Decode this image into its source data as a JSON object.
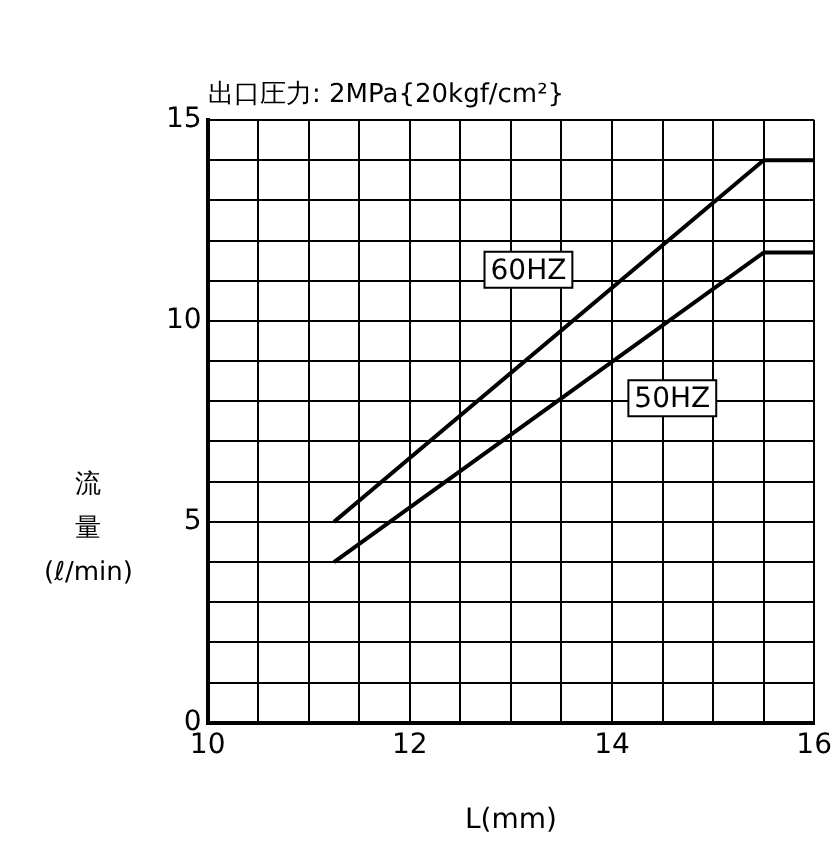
{
  "chart_data": {
    "type": "line",
    "subtitle": "出口圧力: 2MPa{20kgf/cm²}",
    "xlabel": "L(mm)",
    "ylabel": "流量(ℓ/min)",
    "xlim": [
      10,
      16
    ],
    "xticks": [
      10,
      {
        "value": 10.5,
        "label": null
      },
      {
        "value": 11,
        "label": null
      },
      {
        "value": 11.5,
        "label": null
      },
      12,
      {
        "value": 12.5,
        "label": null
      },
      {
        "value": 13,
        "label": null
      },
      {
        "value": 13.5,
        "label": null
      },
      14,
      {
        "value": 14.5,
        "label": null
      },
      {
        "value": 15,
        "label": null
      },
      {
        "value": 15.5,
        "label": null
      },
      16
    ],
    "ylim": [
      0,
      15
    ],
    "yticks": [
      0,
      {
        "value": 1,
        "label": null
      },
      {
        "value": 2,
        "label": null
      },
      {
        "value": 3,
        "label": null
      },
      {
        "value": 4,
        "label": null
      },
      5,
      {
        "value": 6,
        "label": null
      },
      {
        "value": 7,
        "label": null
      },
      {
        "value": 8,
        "label": null
      },
      {
        "value": 9,
        "label": null
      },
      10,
      {
        "value": 11,
        "label": null
      },
      {
        "value": 12,
        "label": null
      },
      {
        "value": 13,
        "label": null
      },
      {
        "value": 14,
        "label": null
      },
      15
    ],
    "grid": true,
    "legend": false,
    "marker": "none",
    "line_style": "solid",
    "series": [
      {
        "name": "60HZ",
        "color": "#000000",
        "x": [
          11.25,
          15.5,
          16
        ],
        "values": [
          5,
          14,
          14
        ]
      },
      {
        "name": "50HZ",
        "color": "#000000",
        "x": [
          11.25,
          15.5,
          16
        ],
        "values": [
          4,
          11.7,
          11.7
        ]
      }
    ]
  }
}
